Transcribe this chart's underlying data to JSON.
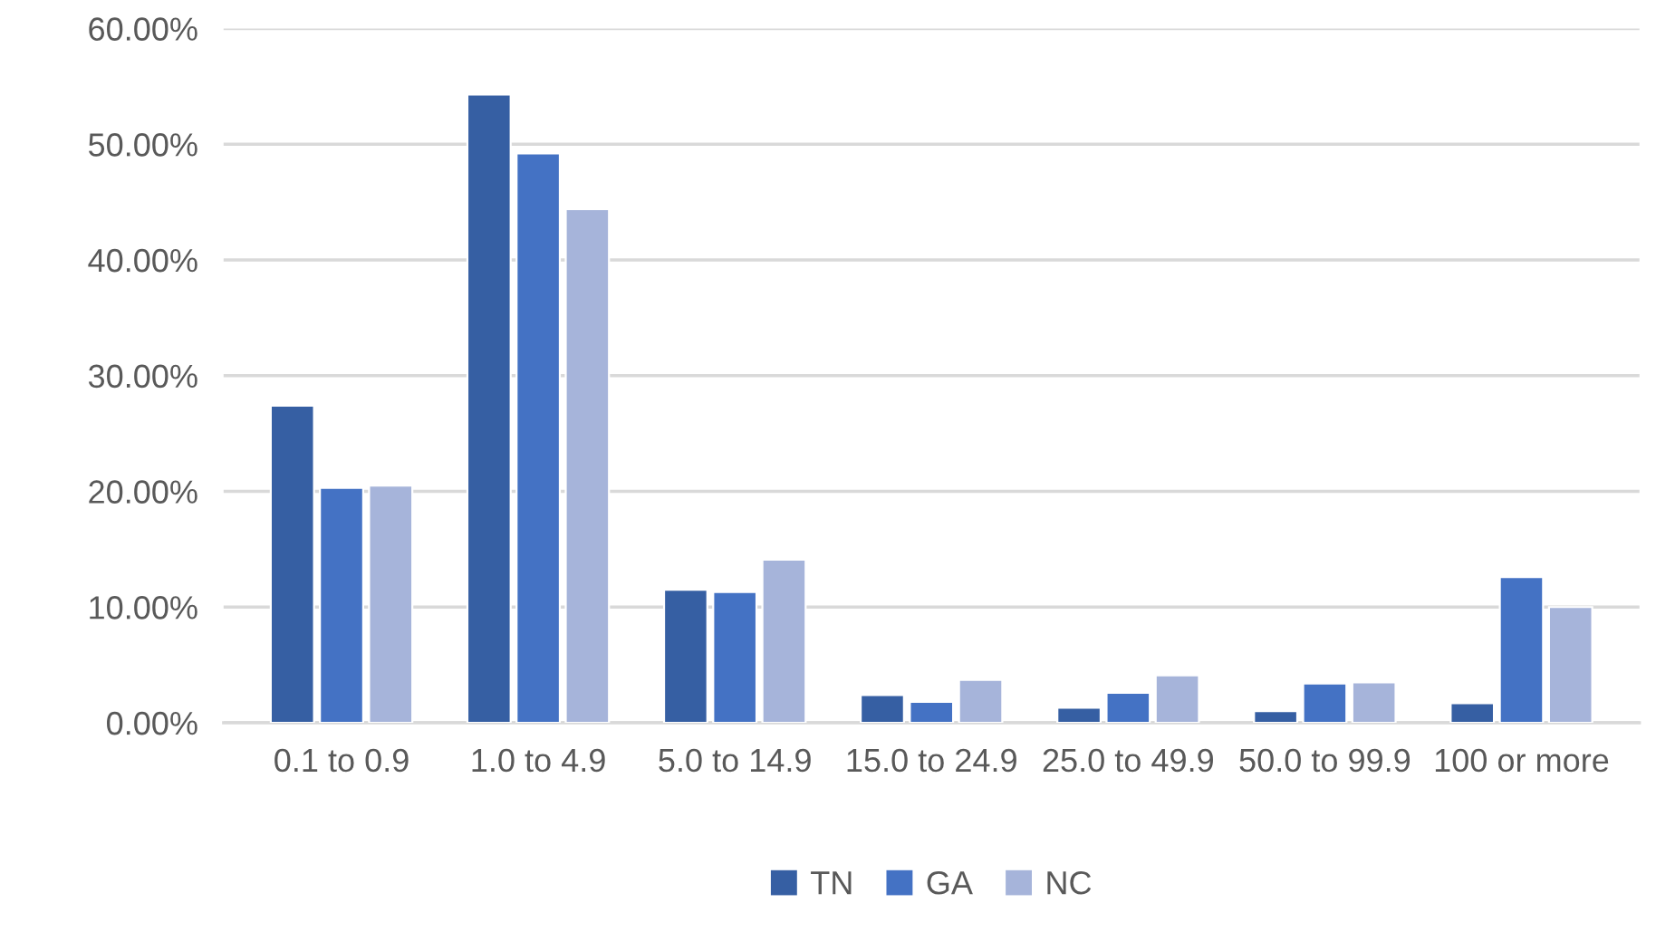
{
  "chart_data": {
    "type": "bar",
    "categories": [
      "0.1 to 0.9",
      "1.0 to 4.9",
      "5.0 to 14.9",
      "15.0 to 24.9",
      "25.0 to 49.9",
      "50.0 to 99.9",
      "100 or more"
    ],
    "series": [
      {
        "name": "TN",
        "color": "#365fa3",
        "values": [
          27.4,
          54.3,
          11.5,
          2.4,
          1.3,
          1.0,
          1.7
        ]
      },
      {
        "name": "GA",
        "color": "#4472c4",
        "values": [
          20.3,
          49.2,
          11.3,
          1.8,
          2.6,
          3.4,
          12.6
        ]
      },
      {
        "name": "NC",
        "color": "#a6b4da",
        "values": [
          20.5,
          44.4,
          14.1,
          3.7,
          4.1,
          3.5,
          10.0
        ]
      }
    ],
    "ylim": [
      0,
      60
    ],
    "yticks": [
      {
        "value": 0,
        "label": "0.00%"
      },
      {
        "value": 10,
        "label": "10.00%"
      },
      {
        "value": 20,
        "label": "20.00%"
      },
      {
        "value": 30,
        "label": "30.00%"
      },
      {
        "value": 40,
        "label": "40.00%"
      },
      {
        "value": 50,
        "label": "50.00%"
      },
      {
        "value": 60,
        "label": "60.00%"
      }
    ],
    "grid": "y",
    "legend": "bottom"
  }
}
